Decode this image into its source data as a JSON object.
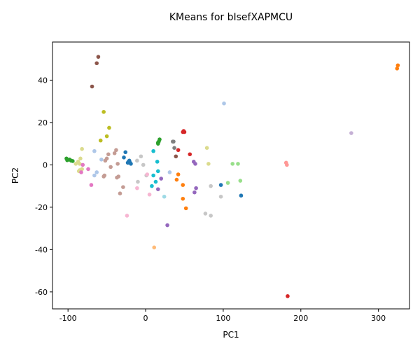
{
  "chart_data": {
    "type": "scatter",
    "title": "KMeans for bIsefXAPMCU",
    "xlabel": "PC1",
    "ylabel": "PC2",
    "xlim": [
      -120,
      340
    ],
    "ylim": [
      -68,
      58
    ],
    "xticks": [
      -100,
      0,
      100,
      200,
      300
    ],
    "yticks": [
      -60,
      -40,
      -20,
      0,
      20,
      40
    ],
    "grid": false,
    "legend": "none",
    "colors": {
      "blue": "#1f77b4",
      "orange": "#ff7f0e",
      "green": "#2ca02c",
      "red": "#d62728",
      "purple": "#9467bd",
      "brown": "#8c564b",
      "pink": "#e377c2",
      "gray": "#7f7f7f",
      "olive": "#bcbd22",
      "cyan": "#17becf",
      "lightblue": "#aec7e8",
      "peach": "#ffbb78",
      "lightgreen": "#98df8a",
      "lightred": "#ff9896",
      "lavender": "#c5b0d5",
      "tan": "#c49c94",
      "lightpink": "#f7b6d2",
      "lightgray": "#c7c7c7",
      "lightolive": "#dbdb8d",
      "lightcyan": "#9edae5"
    },
    "points": [
      {
        "x": -102,
        "y": 3,
        "c": "green"
      },
      {
        "x": -101,
        "y": 2.2,
        "c": "green"
      },
      {
        "x": -98,
        "y": 2.5,
        "c": "green"
      },
      {
        "x": -96,
        "y": 2,
        "c": "green"
      },
      {
        "x": -94,
        "y": 1.8,
        "c": "green"
      },
      {
        "x": 16,
        "y": 10,
        "c": "green"
      },
      {
        "x": 17,
        "y": 11,
        "c": "green"
      },
      {
        "x": 18,
        "y": 12,
        "c": "green"
      },
      {
        "x": 16,
        "y": 10.5,
        "c": "green"
      },
      {
        "x": -61,
        "y": 51,
        "c": "brown"
      },
      {
        "x": -63,
        "y": 48,
        "c": "brown"
      },
      {
        "x": -69,
        "y": 37,
        "c": "brown"
      },
      {
        "x": 39,
        "y": 4,
        "c": "brown"
      },
      {
        "x": -54,
        "y": 25,
        "c": "olive"
      },
      {
        "x": -47,
        "y": 17.5,
        "c": "olive"
      },
      {
        "x": -58,
        "y": 11.5,
        "c": "olive"
      },
      {
        "x": -50,
        "y": 13.5,
        "c": "olive"
      },
      {
        "x": 101,
        "y": 29,
        "c": "lightblue"
      },
      {
        "x": -66,
        "y": 6.5,
        "c": "lightblue"
      },
      {
        "x": -63,
        "y": -3.5,
        "c": "lightblue"
      },
      {
        "x": -57,
        "y": 2.5,
        "c": "lightblue"
      },
      {
        "x": -66,
        "y": -5,
        "c": "lightblue"
      },
      {
        "x": 31,
        "y": -3.5,
        "c": "lightblue"
      },
      {
        "x": 325,
        "y": 47,
        "c": "orange"
      },
      {
        "x": 324,
        "y": 45.5,
        "c": "orange"
      },
      {
        "x": 40,
        "y": -7,
        "c": "orange"
      },
      {
        "x": 42,
        "y": -4.5,
        "c": "orange"
      },
      {
        "x": 48,
        "y": -16,
        "c": "orange"
      },
      {
        "x": 52,
        "y": -20.5,
        "c": "orange"
      },
      {
        "x": 48,
        "y": -9.5,
        "c": "orange"
      },
      {
        "x": 50,
        "y": 15.5,
        "c": "red"
      },
      {
        "x": 48,
        "y": 15.5,
        "c": "red"
      },
      {
        "x": 49,
        "y": 16,
        "c": "red"
      },
      {
        "x": 57,
        "y": 5,
        "c": "red"
      },
      {
        "x": 42,
        "y": 7,
        "c": "red"
      },
      {
        "x": 183,
        "y": -62,
        "c": "red"
      },
      {
        "x": 265,
        "y": 15,
        "c": "lavender"
      },
      {
        "x": -82,
        "y": 7.5,
        "c": "lightolive"
      },
      {
        "x": -87,
        "y": 1.5,
        "c": "lightolive"
      },
      {
        "x": -84,
        "y": 3,
        "c": "lightolive"
      },
      {
        "x": -82,
        "y": -2,
        "c": "lightolive"
      },
      {
        "x": -86,
        "y": -3,
        "c": "lightolive"
      },
      {
        "x": -85,
        "y": -2.5,
        "c": "lightolive"
      },
      {
        "x": -90,
        "y": 0.5,
        "c": "lightolive"
      },
      {
        "x": -85,
        "y": 0.5,
        "c": "lightolive"
      },
      {
        "x": 79,
        "y": 8,
        "c": "lightolive"
      },
      {
        "x": 81,
        "y": 0.5,
        "c": "lightolive"
      },
      {
        "x": -81,
        "y": 0,
        "c": "pink"
      },
      {
        "x": -74,
        "y": -2,
        "c": "pink"
      },
      {
        "x": -70,
        "y": -9.5,
        "c": "pink"
      },
      {
        "x": -83,
        "y": -3.5,
        "c": "pink"
      },
      {
        "x": -52,
        "y": 2,
        "c": "tan"
      },
      {
        "x": -48,
        "y": 5,
        "c": "tan"
      },
      {
        "x": -38,
        "y": 7,
        "c": "tan"
      },
      {
        "x": -40,
        "y": 5.5,
        "c": "tan"
      },
      {
        "x": -45,
        "y": -1,
        "c": "tan"
      },
      {
        "x": -36,
        "y": 0.5,
        "c": "tan"
      },
      {
        "x": -53,
        "y": -5,
        "c": "tan"
      },
      {
        "x": -54,
        "y": -5.5,
        "c": "tan"
      },
      {
        "x": -37,
        "y": -6,
        "c": "tan"
      },
      {
        "x": -35,
        "y": -5.5,
        "c": "tan"
      },
      {
        "x": -29,
        "y": -10.5,
        "c": "tan"
      },
      {
        "x": -33,
        "y": -13.5,
        "c": "tan"
      },
      {
        "x": -50,
        "y": 3,
        "c": "tan"
      },
      {
        "x": -26,
        "y": 6,
        "c": "blue"
      },
      {
        "x": -28,
        "y": 3.5,
        "c": "blue"
      },
      {
        "x": -22,
        "y": 1.5,
        "c": "blue"
      },
      {
        "x": -20,
        "y": 1,
        "c": "blue"
      },
      {
        "x": -21,
        "y": 2,
        "c": "blue"
      },
      {
        "x": -19,
        "y": 0.5,
        "c": "blue"
      },
      {
        "x": -23,
        "y": 1,
        "c": "blue"
      },
      {
        "x": 97,
        "y": -9.5,
        "c": "blue"
      },
      {
        "x": 123,
        "y": -14.5,
        "c": "blue"
      },
      {
        "x": -11,
        "y": 2,
        "c": "lightgray"
      },
      {
        "x": -3,
        "y": 0,
        "c": "lightgray"
      },
      {
        "x": -6,
        "y": 4,
        "c": "lightgray"
      },
      {
        "x": -10,
        "y": -8,
        "c": "lightgray"
      },
      {
        "x": 1,
        "y": -5,
        "c": "lightgray"
      },
      {
        "x": 84,
        "y": -10,
        "c": "lightgray"
      },
      {
        "x": 77,
        "y": -23,
        "c": "lightgray"
      },
      {
        "x": 84,
        "y": -24,
        "c": "lightgray"
      },
      {
        "x": 97,
        "y": -15,
        "c": "lightgray"
      },
      {
        "x": 10,
        "y": 6.5,
        "c": "cyan"
      },
      {
        "x": 15,
        "y": 1.5,
        "c": "cyan"
      },
      {
        "x": 16,
        "y": -3,
        "c": "cyan"
      },
      {
        "x": 10,
        "y": -5,
        "c": "cyan"
      },
      {
        "x": 13,
        "y": -8,
        "c": "cyan"
      },
      {
        "x": 8,
        "y": -10,
        "c": "cyan"
      },
      {
        "x": 20,
        "y": -6.5,
        "c": "purple"
      },
      {
        "x": 16,
        "y": -11.5,
        "c": "purple"
      },
      {
        "x": 28,
        "y": -28.5,
        "c": "purple"
      },
      {
        "x": 62,
        "y": 1.5,
        "c": "purple"
      },
      {
        "x": 64,
        "y": 0.5,
        "c": "purple"
      },
      {
        "x": 65,
        "y": -11,
        "c": "purple"
      },
      {
        "x": 63,
        "y": -13,
        "c": "purple"
      },
      {
        "x": 35,
        "y": 11,
        "c": "gray"
      },
      {
        "x": 36,
        "y": 11,
        "c": "gray"
      },
      {
        "x": 37,
        "y": 8,
        "c": "gray"
      },
      {
        "x": -11,
        "y": -11,
        "c": "lightpink"
      },
      {
        "x": 2,
        "y": -4.5,
        "c": "lightpink"
      },
      {
        "x": 5,
        "y": -14,
        "c": "lightpink"
      },
      {
        "x": -24,
        "y": -24,
        "c": "lightpink"
      },
      {
        "x": 24,
        "y": -15,
        "c": "lightcyan"
      },
      {
        "x": 106,
        "y": -8.5,
        "c": "lightgreen"
      },
      {
        "x": 112,
        "y": 0.5,
        "c": "lightgreen"
      },
      {
        "x": 119,
        "y": 0.5,
        "c": "lightgreen"
      },
      {
        "x": 122,
        "y": -7.5,
        "c": "lightgreen"
      },
      {
        "x": 181,
        "y": 1,
        "c": "lightred"
      },
      {
        "x": 182,
        "y": 0,
        "c": "lightred"
      },
      {
        "x": 11,
        "y": -39,
        "c": "peach"
      }
    ]
  }
}
